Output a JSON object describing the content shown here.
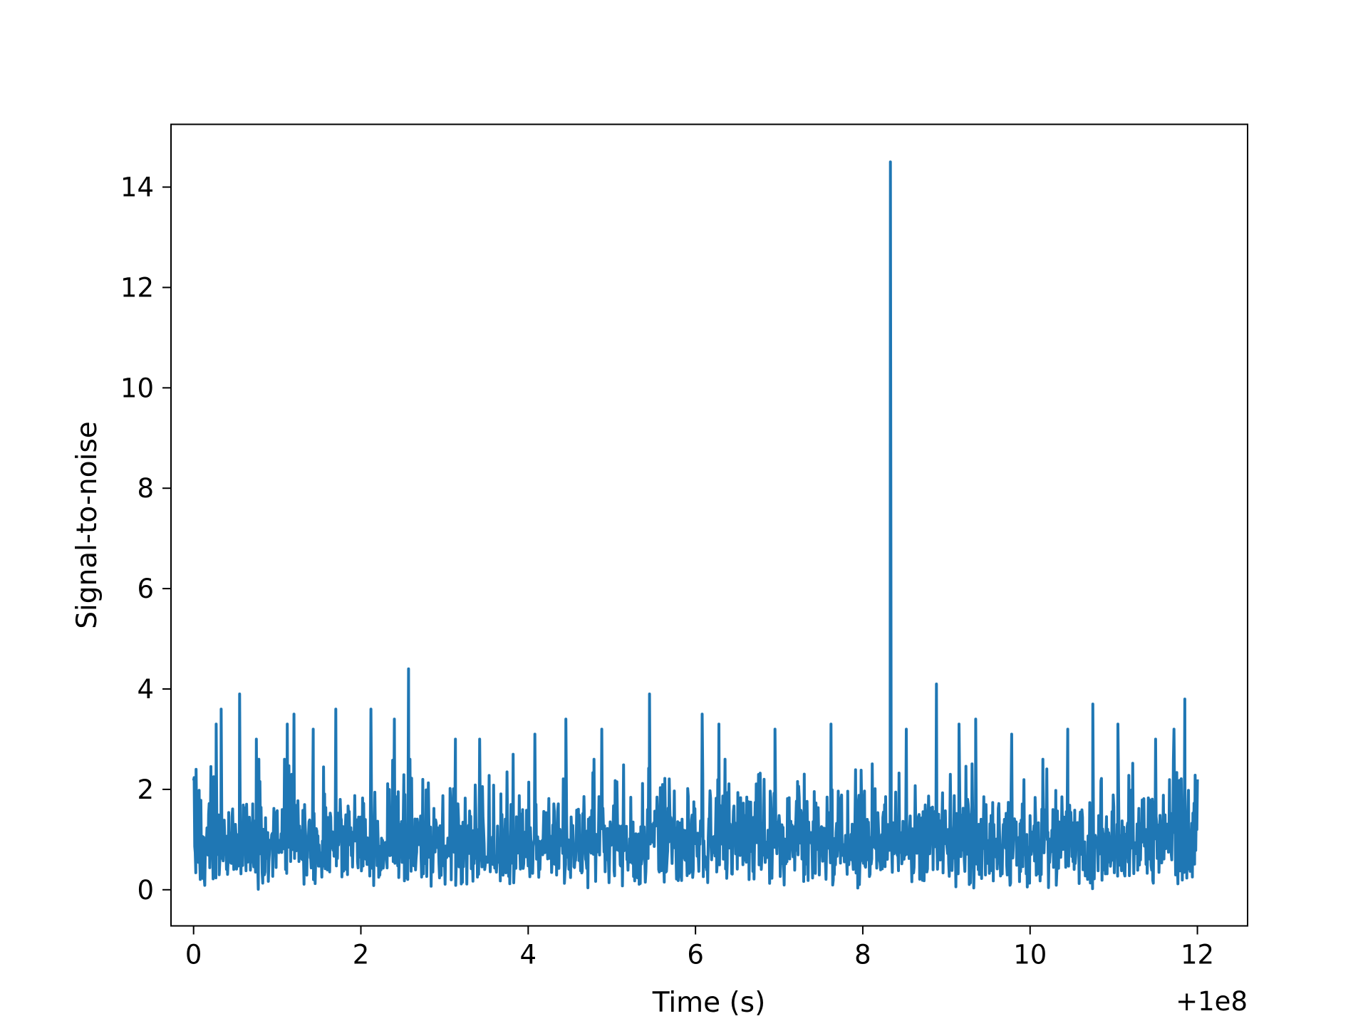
{
  "chart_data": {
    "type": "line",
    "title": "",
    "xlabel": "Time (s)",
    "ylabel": "Signal-to-noise",
    "x_offset_label": "+1e8",
    "xlim": [
      -0.27,
      12.6
    ],
    "ylim": [
      -0.72,
      15.25
    ],
    "x_ticks": [
      0,
      2,
      4,
      6,
      8,
      10,
      12
    ],
    "y_ticks": [
      0,
      2,
      4,
      6,
      8,
      10,
      12,
      14
    ],
    "grid": false,
    "line_color": "#1f77b4",
    "series": [
      {
        "x_range": [
          0,
          12
        ],
        "noise_baseline": 1.2,
        "noise_floor": 0.0,
        "peaks": [
          {
            "x": 0.03,
            "y": 2.4
          },
          {
            "x": 0.27,
            "y": 3.3
          },
          {
            "x": 0.33,
            "y": 3.6
          },
          {
            "x": 0.55,
            "y": 3.9
          },
          {
            "x": 0.75,
            "y": 3.0
          },
          {
            "x": 1.12,
            "y": 3.3
          },
          {
            "x": 1.2,
            "y": 3.5
          },
          {
            "x": 1.43,
            "y": 3.2
          },
          {
            "x": 1.7,
            "y": 3.6
          },
          {
            "x": 2.12,
            "y": 3.6
          },
          {
            "x": 2.4,
            "y": 3.4
          },
          {
            "x": 2.57,
            "y": 4.4
          },
          {
            "x": 3.13,
            "y": 3.0
          },
          {
            "x": 3.42,
            "y": 3.0
          },
          {
            "x": 3.82,
            "y": 2.7
          },
          {
            "x": 4.08,
            "y": 3.1
          },
          {
            "x": 4.45,
            "y": 3.4
          },
          {
            "x": 4.88,
            "y": 3.2
          },
          {
            "x": 5.45,
            "y": 3.9
          },
          {
            "x": 6.08,
            "y": 3.5
          },
          {
            "x": 6.28,
            "y": 3.3
          },
          {
            "x": 6.95,
            "y": 3.2
          },
          {
            "x": 7.62,
            "y": 3.3
          },
          {
            "x": 8.33,
            "y": 14.5
          },
          {
            "x": 8.52,
            "y": 3.2
          },
          {
            "x": 8.88,
            "y": 4.1
          },
          {
            "x": 9.15,
            "y": 3.3
          },
          {
            "x": 9.35,
            "y": 3.4
          },
          {
            "x": 9.78,
            "y": 3.1
          },
          {
            "x": 10.45,
            "y": 3.2
          },
          {
            "x": 10.75,
            "y": 3.7
          },
          {
            "x": 11.05,
            "y": 3.3
          },
          {
            "x": 11.5,
            "y": 3.0
          },
          {
            "x": 11.72,
            "y": 3.2
          },
          {
            "x": 11.85,
            "y": 3.8
          },
          {
            "x": 12.0,
            "y": 2.2
          }
        ]
      }
    ]
  }
}
